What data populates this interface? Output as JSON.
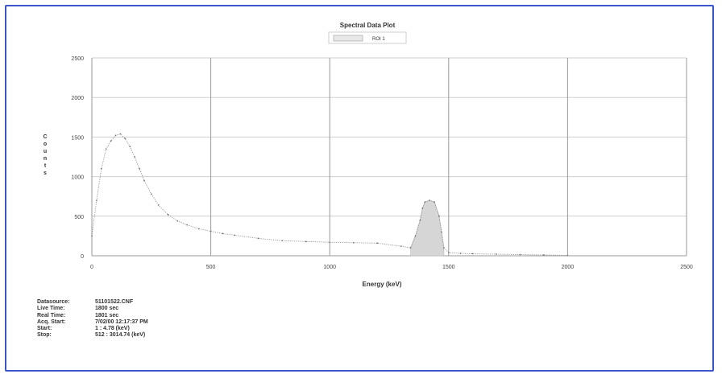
{
  "chart_data": {
    "type": "area",
    "title": "Spectral Data Plot",
    "legend": {
      "entries": [
        "ROI 1"
      ],
      "placement": "top-center"
    },
    "xlabel": "Energy (keV)",
    "ylabel": "Counts",
    "xlim": [
      0,
      2500
    ],
    "ylim": [
      0,
      2500
    ],
    "xticks": [
      "0",
      "500",
      "1000",
      "1500",
      "2000",
      "2500"
    ],
    "yticks": [
      "0",
      "500",
      "1000",
      "1500",
      "2000",
      "2500"
    ],
    "grid": true,
    "series": [
      {
        "name": "",
        "x": [
          0,
          20,
          40,
          60,
          80,
          100,
          120,
          140,
          160,
          180,
          200,
          220,
          250,
          280,
          320,
          360,
          400,
          450,
          500,
          550,
          600,
          700,
          800,
          900,
          1000,
          1100,
          1200,
          1300,
          1340,
          1360,
          1380,
          1390,
          1400,
          1420,
          1440,
          1460,
          1470,
          1480,
          1500,
          1550,
          1600,
          1700,
          1800,
          1900,
          2000
        ],
        "y": [
          250,
          700,
          1100,
          1350,
          1450,
          1520,
          1540,
          1480,
          1380,
          1250,
          1100,
          950,
          780,
          640,
          520,
          440,
          390,
          340,
          310,
          280,
          260,
          220,
          190,
          180,
          170,
          165,
          160,
          120,
          100,
          250,
          450,
          600,
          680,
          700,
          680,
          500,
          300,
          100,
          40,
          30,
          25,
          20,
          15,
          10,
          5
        ]
      }
    ],
    "roi": {
      "name": "ROI 1",
      "x_start": 1340,
      "x_end": 1480
    }
  },
  "info": {
    "datasource_label": "Datasource:",
    "datasource_value": "51101522.CNF",
    "live_time_label": "Live Time:",
    "live_time_value": "1800 sec",
    "real_time_label": "Real Time:",
    "real_time_value": "1801 sec",
    "acq_start_label": "Acq. Start:",
    "acq_start_value": "7/02/00 12:17:37 PM",
    "start_label": "Start:",
    "start_value": "1  :  4.78 (keV)",
    "stop_label": "Stop:",
    "stop_value": "512  :  3014.74 (keV)"
  }
}
